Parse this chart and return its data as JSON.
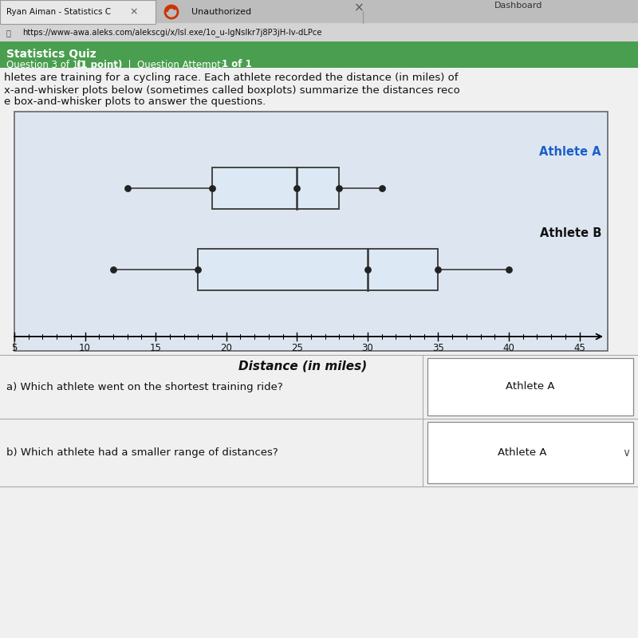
{
  "athlete_A": {
    "min": 13,
    "q1": 19,
    "median": 25,
    "q3": 28,
    "max": 31,
    "label": "Athlete A"
  },
  "athlete_B": {
    "min": 12,
    "q1": 18,
    "median": 30,
    "q3": 35,
    "max": 40,
    "label": "Athlete B"
  },
  "xmin": 5,
  "xmax": 47,
  "xlabel": "Distance (in miles)",
  "x_ticks": [
    5,
    10,
    15,
    20,
    25,
    30,
    35,
    40,
    45
  ],
  "browser_url": "https://www-awa.aleks.com/alekscgi/x/lsl.exe/1o_u-lgNslkr7j8P3jH-lv-dLPce",
  "qa_answer_a": "Athlete A",
  "qb_answer_b": "Athlete A",
  "page_bg": "#e8e8e8",
  "body_bg": "#f0f0f0",
  "chart_bg": "#dde6f0",
  "box_fill": "#dce9f5",
  "header_green": "#4a9e4f",
  "tab_bg": "#c8c8c8",
  "addr_bg": "#d8d8d8"
}
